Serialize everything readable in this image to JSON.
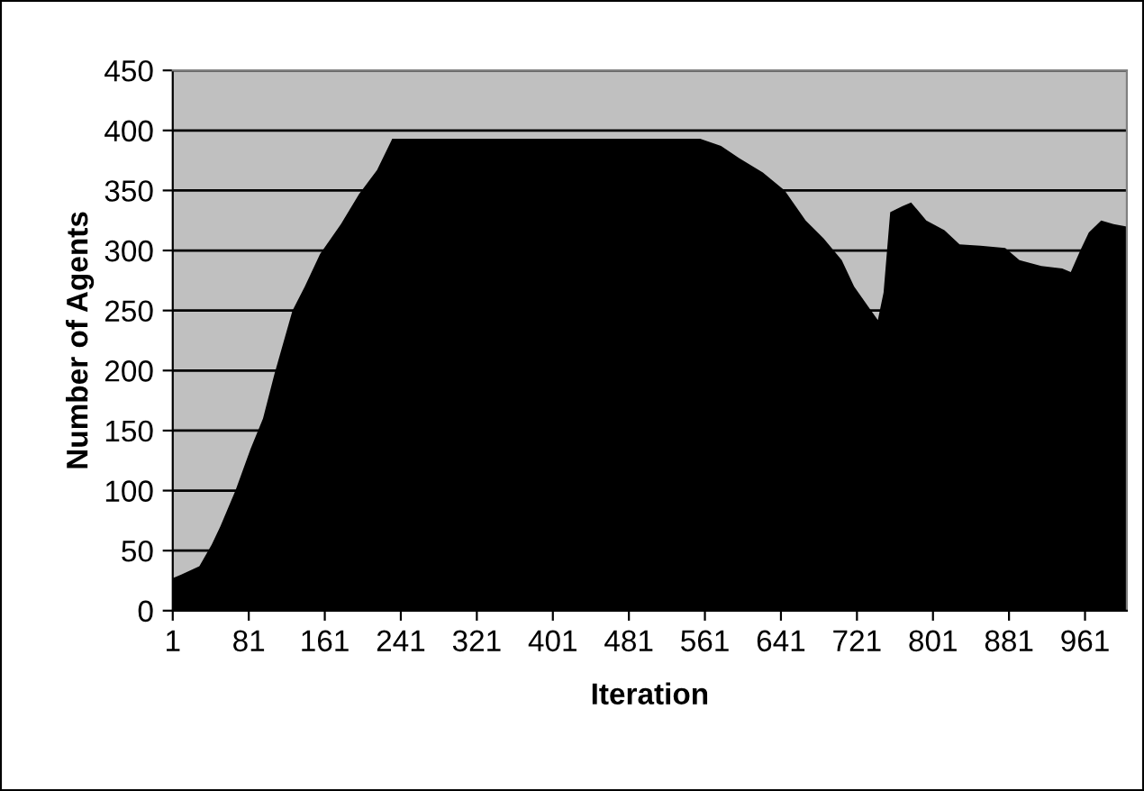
{
  "chart_data": {
    "type": "area",
    "xlabel": "Iteration",
    "ylabel": "Number of Agents",
    "x": [
      1,
      10,
      29,
      42,
      51,
      67,
      83,
      96,
      108,
      127,
      140,
      156,
      178,
      197,
      216,
      232,
      556,
      578,
      597,
      622,
      645,
      667,
      686,
      705,
      718,
      734,
      743,
      749,
      756,
      769,
      778,
      794,
      813,
      829,
      851,
      877,
      892,
      915,
      937,
      946,
      956,
      965,
      978,
      991,
      1005
    ],
    "series": [
      {
        "color": "#000000",
        "values": [
          27,
          30,
          37,
          55,
          70,
          100,
          135,
          160,
          197,
          250,
          270,
          297,
          322,
          347,
          367,
          393,
          393,
          387,
          377,
          365,
          350,
          325,
          310,
          292,
          270,
          252,
          242,
          265,
          332,
          337,
          340,
          325,
          317,
          305,
          304,
          302,
          292,
          287,
          285,
          282,
          300,
          315,
          325,
          322,
          320
        ]
      }
    ],
    "xlim": [
      1,
      1005
    ],
    "xticks": [
      1,
      81,
      161,
      241,
      321,
      401,
      481,
      561,
      641,
      721,
      801,
      881,
      961
    ],
    "ylim": [
      0,
      450
    ],
    "yticks": [
      0,
      50,
      100,
      150,
      200,
      250,
      300,
      350,
      400,
      450
    ],
    "grid": "y",
    "legend": false
  }
}
